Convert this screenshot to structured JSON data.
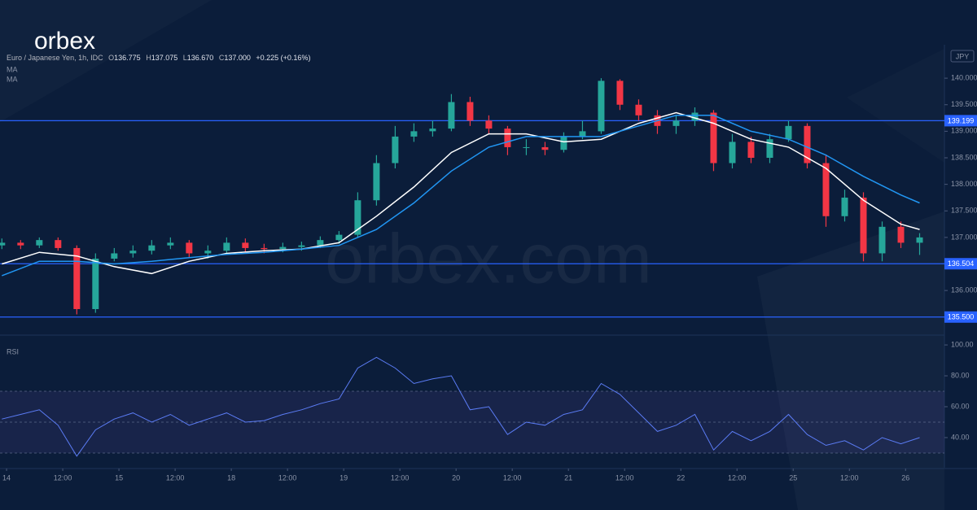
{
  "brand": {
    "logo": "orbex",
    "watermark": "orbex.com"
  },
  "chart_data": {
    "type": "candlestick",
    "info": {
      "symbol": "Euro / Japanese Yen, 1h, IDC",
      "o_label": "O",
      "o": "136.775",
      "h_label": "H",
      "h": "137.075",
      "l_label": "L",
      "l": "136.670",
      "c_label": "C",
      "c": "137.000",
      "change": "+0.225 (+0.16%)"
    },
    "currency": "JPY",
    "x": [
      -1,
      3,
      7,
      11,
      15,
      19,
      23,
      27,
      31,
      35,
      39,
      43,
      47,
      51,
      55,
      59,
      63,
      67,
      71,
      75,
      79,
      83,
      87,
      91,
      95,
      99,
      103,
      107,
      111,
      115,
      119,
      123,
      127,
      131,
      135,
      139,
      143,
      147,
      151,
      155,
      159,
      163,
      167,
      171,
      175,
      179,
      183,
      187,
      191,
      195
    ],
    "open": [
      136.85,
      136.9,
      136.85,
      136.95,
      136.8,
      135.65,
      136.6,
      136.7,
      136.75,
      136.85,
      136.9,
      136.7,
      136.75,
      136.9,
      136.8,
      136.78,
      136.82,
      136.85,
      136.95,
      137.05,
      137.7,
      138.4,
      138.9,
      139.0,
      139.05,
      139.55,
      139.2,
      139.05,
      138.7,
      138.7,
      138.65,
      138.9,
      139.0,
      139.95,
      139.5,
      139.3,
      139.1,
      139.2,
      139.35,
      138.4,
      138.8,
      138.5,
      138.85,
      139.1,
      138.4,
      137.4,
      137.75,
      136.7,
      137.2,
      136.9
    ],
    "high": [
      136.98,
      136.95,
      137.0,
      137.0,
      136.85,
      136.7,
      136.8,
      136.85,
      136.95,
      137.0,
      136.95,
      136.85,
      137.0,
      136.98,
      136.88,
      136.9,
      136.92,
      137.02,
      137.12,
      137.85,
      138.55,
      139.1,
      139.15,
      139.2,
      139.7,
      139.65,
      139.3,
      139.1,
      138.85,
      138.8,
      138.98,
      139.2,
      140.0,
      139.98,
      139.6,
      139.4,
      139.3,
      139.45,
      139.4,
      138.95,
      138.9,
      138.95,
      139.2,
      139.15,
      138.55,
      137.9,
      137.85,
      137.3,
      137.3,
      137.08
    ],
    "low": [
      136.78,
      136.78,
      136.8,
      136.75,
      135.55,
      135.58,
      136.55,
      136.62,
      136.68,
      136.78,
      136.62,
      136.6,
      136.7,
      136.72,
      136.7,
      136.72,
      136.75,
      136.8,
      136.88,
      137.0,
      137.6,
      138.3,
      138.8,
      138.9,
      139.0,
      139.1,
      138.95,
      138.55,
      138.55,
      138.55,
      138.6,
      138.85,
      138.95,
      139.4,
      139.2,
      138.95,
      138.95,
      139.1,
      138.25,
      138.3,
      138.4,
      138.4,
      138.8,
      138.3,
      137.2,
      137.3,
      136.55,
      136.55,
      136.8,
      136.67
    ],
    "close": [
      136.9,
      136.85,
      136.95,
      136.8,
      135.65,
      136.6,
      136.7,
      136.75,
      136.85,
      136.9,
      136.7,
      136.75,
      136.9,
      136.8,
      136.78,
      136.82,
      136.85,
      136.95,
      137.05,
      137.7,
      138.4,
      138.9,
      139.0,
      139.05,
      139.55,
      139.2,
      139.05,
      138.7,
      138.7,
      138.65,
      138.9,
      139.0,
      139.95,
      139.5,
      139.3,
      139.1,
      139.2,
      139.35,
      138.4,
      138.8,
      138.5,
      138.85,
      139.1,
      138.4,
      137.4,
      137.75,
      136.7,
      137.2,
      136.9,
      137.0
    ],
    "up_color": "#26a69a",
    "down_color": "#f23645",
    "series": [
      {
        "name": "MA",
        "color": "#ffffff",
        "x": [
          -1,
          7,
          15,
          23,
          31,
          39,
          47,
          55,
          63,
          71,
          79,
          87,
          95,
          103,
          111,
          119,
          127,
          135,
          143,
          151,
          159,
          167,
          175,
          183,
          191,
          195
        ],
        "values": [
          136.5,
          136.72,
          136.65,
          136.45,
          136.32,
          136.55,
          136.7,
          136.75,
          136.78,
          136.9,
          137.4,
          137.95,
          138.6,
          138.95,
          138.95,
          138.8,
          138.85,
          139.15,
          139.35,
          139.15,
          138.85,
          138.7,
          138.3,
          137.7,
          137.25,
          137.15
        ]
      },
      {
        "name": "MA",
        "color": "#2196f3",
        "x": [
          -1,
          7,
          15,
          23,
          31,
          39,
          47,
          55,
          63,
          71,
          79,
          87,
          95,
          103,
          111,
          119,
          127,
          135,
          143,
          151,
          159,
          167,
          175,
          183,
          191,
          195
        ],
        "values": [
          136.28,
          136.55,
          136.55,
          136.5,
          136.55,
          136.62,
          136.68,
          136.72,
          136.78,
          136.85,
          137.15,
          137.65,
          138.25,
          138.7,
          138.9,
          138.9,
          138.9,
          139.1,
          139.3,
          139.3,
          139.0,
          138.85,
          138.55,
          138.15,
          137.8,
          137.65
        ]
      }
    ],
    "levels": [
      139.199,
      136.504,
      {
        "value": 135.5,
        "label": "135.500"
      }
    ],
    "level_color": "#2962ff",
    "xlim": [
      -1.4,
      200.3
    ],
    "xticks": [
      {
        "value": 0,
        "label": "14"
      },
      {
        "value": 12,
        "label": "12:00"
      },
      {
        "value": 24,
        "label": "15"
      },
      {
        "value": 36,
        "label": "12:00"
      },
      {
        "value": 48,
        "label": "18"
      },
      {
        "value": 60,
        "label": "12:00"
      },
      {
        "value": 72,
        "label": "19"
      },
      {
        "value": 84,
        "label": "12:00"
      },
      {
        "value": 96,
        "label": "20"
      },
      {
        "value": 108,
        "label": "12:00"
      },
      {
        "value": 120,
        "label": "21"
      },
      {
        "value": 132,
        "label": "12:00"
      },
      {
        "value": 144,
        "label": "22"
      },
      {
        "value": 156,
        "label": "12:00"
      },
      {
        "value": 168,
        "label": "25"
      },
      {
        "value": 180,
        "label": "12:00"
      },
      {
        "value": 192,
        "label": "26"
      }
    ],
    "ylim": [
      135.19,
      140.63
    ],
    "yticks": [
      {
        "value": 140,
        "label": "140.000"
      },
      {
        "value": 139.5,
        "label": "139.500"
      },
      {
        "value": 139,
        "label": "139.000"
      },
      {
        "value": 138.5,
        "label": "138.500"
      },
      {
        "value": 138,
        "label": "138.000"
      },
      {
        "value": 137.5,
        "label": "137.500"
      },
      {
        "value": 137,
        "label": "137.000"
      },
      {
        "value": 136,
        "label": "136.000"
      }
    ],
    "rsi": {
      "name": "RSI",
      "color": "#5b7cf5",
      "x": [
        -1,
        3,
        7,
        11,
        15,
        19,
        23,
        27,
        31,
        35,
        39,
        43,
        47,
        51,
        55,
        59,
        63,
        67,
        71,
        75,
        79,
        83,
        87,
        91,
        95,
        99,
        103,
        107,
        111,
        115,
        119,
        123,
        127,
        131,
        135,
        139,
        143,
        147,
        151,
        155,
        159,
        163,
        167,
        171,
        175,
        179,
        183,
        187,
        191,
        195
      ],
      "values": [
        52,
        55,
        58,
        48,
        28,
        45,
        52,
        56,
        50,
        55,
        48,
        52,
        56,
        50,
        51,
        55,
        58,
        62,
        65,
        85,
        92,
        85,
        75,
        78,
        80,
        58,
        60,
        42,
        50,
        48,
        55,
        58,
        75,
        68,
        56,
        44,
        48,
        55,
        32,
        44,
        38,
        44,
        55,
        42,
        35,
        38,
        32,
        40,
        36,
        40
      ],
      "ylim": [
        20.5,
        105.3
      ],
      "bands": [
        30,
        70
      ],
      "mid": 50,
      "yticks": [
        {
          "value": 100,
          "label": "100.00"
        },
        {
          "value": 80,
          "label": "80.00"
        },
        {
          "value": 60,
          "label": "60.00"
        },
        {
          "value": 40,
          "label": "40.00"
        }
      ]
    }
  }
}
